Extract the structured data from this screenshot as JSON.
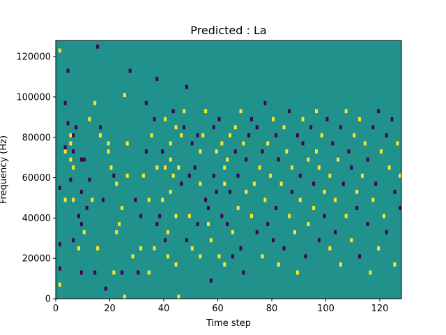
{
  "chart_data": {
    "type": "heatmap",
    "title": "Predicted : La",
    "xlabel": "Time step",
    "ylabel": "Frequency (Hz)",
    "xlim": [
      0,
      128
    ],
    "ylim": [
      0,
      128000
    ],
    "xticks": [
      0,
      20,
      40,
      60,
      80,
      100,
      120
    ],
    "yticks": [
      0,
      20000,
      40000,
      60000,
      80000,
      100000,
      120000
    ],
    "n_time_steps": 128,
    "n_freq_bins": 64,
    "freq_bin_width_hz": 2000,
    "levels": {
      "low": -1,
      "neutral": 0,
      "high": 1
    },
    "colors": {
      "low": "#440154",
      "neutral": "#21918c",
      "high": "#fde725"
    },
    "cells": [
      [
        1,
        3,
        1
      ],
      [
        1,
        7,
        -1
      ],
      [
        1,
        13,
        -1
      ],
      [
        1,
        27,
        -1
      ],
      [
        1,
        61,
        1
      ],
      [
        3,
        24,
        1
      ],
      [
        3,
        36,
        1
      ],
      [
        3,
        37,
        -1
      ],
      [
        3,
        48,
        -1
      ],
      [
        4,
        56,
        -1
      ],
      [
        4,
        43,
        -1
      ],
      [
        5,
        34,
        1
      ],
      [
        5,
        29,
        -1
      ],
      [
        5,
        38,
        1
      ],
      [
        5,
        40,
        1
      ],
      [
        6,
        40,
        -1
      ],
      [
        6,
        36,
        -1
      ],
      [
        6,
        14,
        -1
      ],
      [
        6,
        24,
        1
      ],
      [
        6,
        32,
        1
      ],
      [
        7,
        42,
        -1
      ],
      [
        8,
        20,
        -1
      ],
      [
        8,
        12,
        1
      ],
      [
        9,
        6,
        -1
      ],
      [
        9,
        18,
        -1
      ],
      [
        9,
        26,
        -1
      ],
      [
        9,
        34,
        -1
      ],
      [
        10,
        34,
        -1
      ],
      [
        10,
        16,
        1
      ],
      [
        11,
        22,
        -1
      ],
      [
        12,
        29,
        -1
      ],
      [
        12,
        44,
        1
      ],
      [
        13,
        24,
        1
      ],
      [
        14,
        6,
        -1
      ],
      [
        14,
        48,
        1
      ],
      [
        15,
        62,
        -1
      ],
      [
        15,
        12,
        1
      ],
      [
        16,
        40,
        1
      ],
      [
        16,
        42,
        -1
      ],
      [
        17,
        24,
        -1
      ],
      [
        18,
        2,
        -1
      ],
      [
        19,
        36,
        1
      ],
      [
        19,
        38,
        1
      ],
      [
        20,
        32,
        1
      ],
      [
        21,
        6,
        1
      ],
      [
        21,
        30,
        -1
      ],
      [
        22,
        28,
        1
      ],
      [
        22,
        16,
        1
      ],
      [
        23,
        18,
        1
      ],
      [
        24,
        22,
        1
      ],
      [
        24,
        6,
        -1
      ],
      [
        25,
        50,
        1
      ],
      [
        25,
        0,
        1
      ],
      [
        26,
        30,
        1
      ],
      [
        26,
        38,
        1
      ],
      [
        27,
        56,
        -1
      ],
      [
        28,
        10,
        1
      ],
      [
        29,
        24,
        -1
      ],
      [
        30,
        6,
        -1
      ],
      [
        31,
        20,
        -1
      ],
      [
        31,
        12,
        1
      ],
      [
        32,
        30,
        1
      ],
      [
        33,
        48,
        -1
      ],
      [
        33,
        36,
        -1
      ],
      [
        34,
        6,
        1
      ],
      [
        34,
        24,
        1
      ],
      [
        35,
        40,
        1
      ],
      [
        36,
        44,
        -1
      ],
      [
        36,
        12,
        1
      ],
      [
        37,
        18,
        -1
      ],
      [
        37,
        32,
        1
      ],
      [
        37,
        54,
        -1
      ],
      [
        38,
        20,
        -1
      ],
      [
        39,
        36,
        -1
      ],
      [
        39,
        24,
        1
      ],
      [
        40,
        14,
        -1
      ],
      [
        40,
        44,
        1
      ],
      [
        40,
        32,
        1
      ],
      [
        41,
        16,
        1
      ],
      [
        41,
        10,
        1
      ],
      [
        42,
        26,
        1
      ],
      [
        42,
        34,
        1
      ],
      [
        42,
        38,
        1
      ],
      [
        43,
        30,
        1
      ],
      [
        43,
        46,
        -1
      ],
      [
        44,
        20,
        1
      ],
      [
        44,
        42,
        1
      ],
      [
        44,
        8,
        1
      ],
      [
        45,
        0,
        1
      ],
      [
        45,
        32,
        1
      ],
      [
        46,
        28,
        -1
      ],
      [
        46,
        40,
        1
      ],
      [
        47,
        42,
        -1
      ],
      [
        47,
        46,
        1
      ],
      [
        48,
        52,
        -1
      ],
      [
        48,
        14,
        -1
      ],
      [
        49,
        20,
        1
      ],
      [
        49,
        30,
        -1
      ],
      [
        50,
        38,
        -1
      ],
      [
        50,
        12,
        1
      ],
      [
        51,
        32,
        -1
      ],
      [
        52,
        40,
        -1
      ],
      [
        52,
        18,
        -1
      ],
      [
        53,
        36,
        1
      ],
      [
        53,
        28,
        1
      ],
      [
        53,
        10,
        1
      ],
      [
        54,
        40,
        1
      ],
      [
        55,
        24,
        -1
      ],
      [
        55,
        46,
        1
      ],
      [
        56,
        22,
        -1
      ],
      [
        56,
        18,
        1
      ],
      [
        57,
        14,
        1
      ],
      [
        57,
        4,
        -1
      ],
      [
        58,
        42,
        -1
      ],
      [
        58,
        30,
        -1
      ],
      [
        59,
        36,
        1
      ],
      [
        59,
        26,
        -1
      ],
      [
        60,
        44,
        -1
      ],
      [
        60,
        10,
        1
      ],
      [
        61,
        38,
        1
      ],
      [
        61,
        20,
        -1
      ],
      [
        62,
        32,
        1
      ],
      [
        62,
        28,
        1
      ],
      [
        62,
        8,
        1
      ],
      [
        63,
        34,
        1
      ],
      [
        63,
        18,
        -1
      ],
      [
        64,
        40,
        1
      ],
      [
        64,
        26,
        -1
      ],
      [
        65,
        16,
        1
      ],
      [
        65,
        10,
        -1
      ],
      [
        66,
        36,
        -1
      ],
      [
        66,
        42,
        1
      ],
      [
        67,
        22,
        1
      ],
      [
        67,
        30,
        -1
      ],
      [
        68,
        46,
        1
      ],
      [
        68,
        12,
        -1
      ],
      [
        69,
        38,
        1
      ],
      [
        69,
        6,
        -1
      ],
      [
        70,
        34,
        -1
      ],
      [
        70,
        26,
        1
      ],
      [
        71,
        40,
        -1
      ],
      [
        72,
        20,
        1
      ],
      [
        72,
        44,
        -1
      ],
      [
        73,
        28,
        1
      ],
      [
        74,
        16,
        -1
      ],
      [
        74,
        42,
        -1
      ],
      [
        75,
        32,
        1
      ],
      [
        76,
        36,
        -1
      ],
      [
        76,
        10,
        1
      ],
      [
        77,
        24,
        1
      ],
      [
        77,
        48,
        -1
      ],
      [
        78,
        18,
        -1
      ],
      [
        78,
        38,
        1
      ],
      [
        79,
        30,
        1
      ],
      [
        80,
        14,
        -1
      ],
      [
        80,
        44,
        1
      ],
      [
        81,
        22,
        -1
      ],
      [
        81,
        40,
        -1
      ],
      [
        82,
        34,
        -1
      ],
      [
        82,
        8,
        1
      ],
      [
        83,
        28,
        1
      ],
      [
        84,
        42,
        1
      ],
      [
        84,
        12,
        -1
      ],
      [
        85,
        36,
        1
      ],
      [
        86,
        20,
        1
      ],
      [
        86,
        46,
        -1
      ],
      [
        87,
        26,
        -1
      ],
      [
        87,
        32,
        1
      ],
      [
        88,
        16,
        1
      ],
      [
        89,
        40,
        -1
      ],
      [
        89,
        6,
        1
      ],
      [
        90,
        30,
        -1
      ],
      [
        90,
        24,
        1
      ],
      [
        91,
        38,
        -1
      ],
      [
        91,
        44,
        1
      ],
      [
        92,
        10,
        -1
      ],
      [
        93,
        34,
        1
      ],
      [
        93,
        18,
        1
      ],
      [
        94,
        42,
        -1
      ],
      [
        95,
        22,
        1
      ],
      [
        95,
        28,
        -1
      ],
      [
        96,
        36,
        1
      ],
      [
        96,
        46,
        1
      ],
      [
        97,
        14,
        -1
      ],
      [
        97,
        32,
        1
      ],
      [
        98,
        40,
        1
      ],
      [
        99,
        20,
        -1
      ],
      [
        99,
        26,
        1
      ],
      [
        100,
        44,
        -1
      ],
      [
        101,
        12,
        1
      ],
      [
        101,
        30,
        1
      ],
      [
        102,
        38,
        -1
      ],
      [
        103,
        16,
        -1
      ],
      [
        103,
        24,
        1
      ],
      [
        104,
        34,
        1
      ],
      [
        105,
        42,
        -1
      ],
      [
        105,
        8,
        1
      ],
      [
        106,
        28,
        -1
      ],
      [
        107,
        46,
        1
      ],
      [
        107,
        20,
        1
      ],
      [
        108,
        36,
        -1
      ],
      [
        109,
        14,
        1
      ],
      [
        109,
        32,
        -1
      ],
      [
        110,
        40,
        1
      ],
      [
        111,
        22,
        -1
      ],
      [
        111,
        26,
        1
      ],
      [
        112,
        44,
        1
      ],
      [
        112,
        10,
        -1
      ],
      [
        113,
        30,
        1
      ],
      [
        114,
        38,
        1
      ],
      [
        115,
        18,
        -1
      ],
      [
        115,
        34,
        -1
      ],
      [
        116,
        6,
        1
      ],
      [
        117,
        42,
        -1
      ],
      [
        117,
        24,
        1
      ],
      [
        118,
        28,
        -1
      ],
      [
        119,
        46,
        -1
      ],
      [
        119,
        12,
        1
      ],
      [
        120,
        36,
        1
      ],
      [
        121,
        20,
        1
      ],
      [
        122,
        40,
        -1
      ],
      [
        122,
        16,
        -1
      ],
      [
        123,
        32,
        1
      ],
      [
        124,
        44,
        -1
      ],
      [
        125,
        8,
        1
      ],
      [
        125,
        26,
        -1
      ],
      [
        126,
        38,
        1
      ],
      [
        127,
        22,
        -1
      ],
      [
        127,
        30,
        1
      ]
    ]
  }
}
